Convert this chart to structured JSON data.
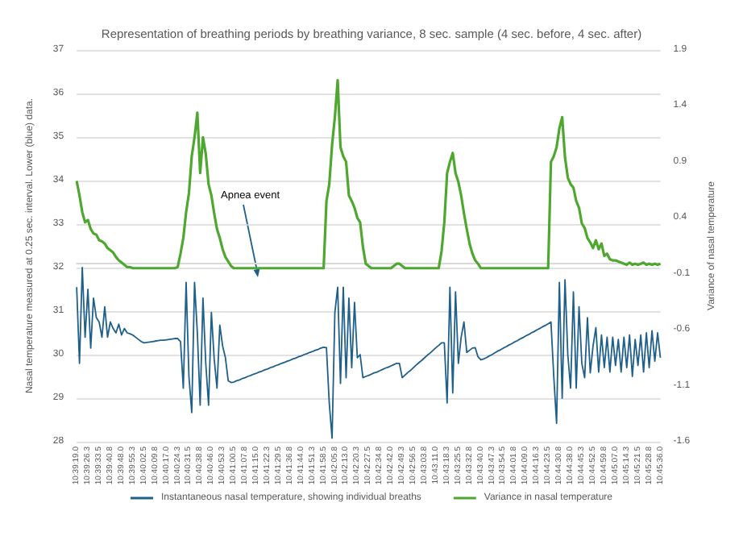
{
  "chart_data": {
    "type": "line",
    "title": "Representation of breathing periods by breathing variance, 8 sec. sample (4 sec. before, 4 sec. after)",
    "ylabel": "Nasal temperature measured at 0.25 sec. interval. Lower (blue) data.",
    "y2label": "Variance of nasal temperature",
    "annotations": [
      "Apnea event"
    ],
    "categories": [
      "10:39:19.0",
      null,
      null,
      null,
      "10:39:26.3",
      null,
      null,
      null,
      "10:39:33.5",
      null,
      null,
      null,
      "10:39:40.8",
      null,
      null,
      null,
      "10:39:48.0",
      null,
      null,
      null,
      "10:39:55.3",
      null,
      null,
      null,
      "10:40:02.5",
      null,
      null,
      null,
      "10:40:09.8",
      null,
      null,
      null,
      "10:40:17.0",
      null,
      null,
      null,
      "10:40:24.3",
      null,
      null,
      null,
      "10:40:31.5",
      null,
      null,
      null,
      "10:40:38.8",
      null,
      null,
      null,
      "10:40:46.0",
      null,
      null,
      null,
      "10:40:53.3",
      null,
      null,
      null,
      "10:41:00.5",
      null,
      null,
      null,
      "10:41:07.8",
      null,
      null,
      null,
      "10:41:15.0",
      null,
      null,
      null,
      "10:41:22.3",
      null,
      null,
      null,
      "10:41:29.5",
      null,
      null,
      null,
      "10:41:36.8",
      null,
      null,
      null,
      "10:41:44.0",
      null,
      null,
      null,
      "10:41:51.3",
      null,
      null,
      null,
      "10:41:58.5",
      null,
      null,
      null,
      "10:42:05.8",
      null,
      null,
      null,
      "10:42:13.0",
      null,
      null,
      null,
      "10:42:20.3",
      null,
      null,
      null,
      "10:42:27.5",
      null,
      null,
      null,
      "10:42:34.8",
      null,
      null,
      null,
      "10:42:42.0",
      null,
      null,
      null,
      "10:42:49.3",
      null,
      null,
      null,
      "10:42:56.5",
      null,
      null,
      null,
      "10:43:03.8",
      null,
      null,
      null,
      "10:43:11.0",
      null,
      null,
      null,
      "10:43:18.3",
      null,
      null,
      null,
      "10:43:25.5",
      null,
      null,
      null,
      "10:43:32.8",
      null,
      null,
      null,
      "10:43:40.0",
      null,
      null,
      null,
      "10:43:47.3",
      null,
      null,
      null,
      "10:43:54.5",
      null,
      null,
      null,
      "10:44:01.8",
      null,
      null,
      null,
      "10:44:09.0",
      null,
      null,
      null,
      "10:44:16.3",
      null,
      null,
      null,
      "10:44:23.5",
      null,
      null,
      null,
      "10:44:30.8",
      null,
      null,
      null,
      "10:44:38.0",
      null,
      null,
      null,
      "10:44:45.3",
      null,
      null,
      null,
      "10:44:52.5",
      null,
      null,
      null,
      "10:44:59.8",
      null,
      null,
      null,
      "10:45:07.0",
      null,
      null,
      null,
      "10:45:14.3",
      null,
      null,
      null,
      "10:45:21.5",
      null,
      null,
      null,
      "10:45:28.8",
      null,
      null,
      null,
      "10:45:36.0"
    ],
    "series": [
      {
        "name": "Instantaneous nasal temperature, showing individual breaths",
        "color": "#1f5f8b",
        "values": [
          31.55,
          29.8,
          32.0,
          30.4,
          31.5,
          30.15,
          31.3,
          30.85,
          30.75,
          30.4,
          31.1,
          30.4,
          30.75,
          30.6,
          30.5,
          30.7,
          30.45,
          30.6,
          30.5,
          30.48,
          30.45,
          30.4,
          30.35,
          30.3,
          30.27,
          30.28,
          30.29,
          30.3,
          30.31,
          30.32,
          30.33,
          30.33,
          30.34,
          30.35,
          30.36,
          30.37,
          30.37,
          30.3,
          29.23,
          31.66,
          29.5,
          28.67,
          31.66,
          30.5,
          28.84,
          31.3,
          29.8,
          28.84,
          30.97,
          29.9,
          29.23,
          30.68,
          30.2,
          29.93,
          29.4,
          29.36,
          29.37,
          29.4,
          29.42,
          29.45,
          29.47,
          29.5,
          29.52,
          29.55,
          29.57,
          29.6,
          29.62,
          29.65,
          29.67,
          29.7,
          29.72,
          29.75,
          29.77,
          29.8,
          29.82,
          29.85,
          29.87,
          29.9,
          29.92,
          29.95,
          29.97,
          30.0,
          30.02,
          30.05,
          30.07,
          30.1,
          30.12,
          30.15,
          30.17,
          30.16,
          28.89,
          28.08,
          30.97,
          31.55,
          29.34,
          31.55,
          29.47,
          31.3,
          29.7,
          31.2,
          29.93,
          30.0,
          29.47,
          29.5,
          29.52,
          29.55,
          29.58,
          29.6,
          29.63,
          29.66,
          29.69,
          29.71,
          29.74,
          29.77,
          29.8,
          29.8,
          29.47,
          29.53,
          29.59,
          29.64,
          29.7,
          29.76,
          29.82,
          29.87,
          29.93,
          29.99,
          30.04,
          30.1,
          30.16,
          30.21,
          30.27,
          30.27,
          28.89,
          31.55,
          29.12,
          31.44,
          29.8,
          30.4,
          30.75,
          30.05,
          30.1,
          30.15,
          30.16,
          29.95,
          29.88,
          29.9,
          29.93,
          29.97,
          30.0,
          30.04,
          30.08,
          30.11,
          30.15,
          30.18,
          30.22,
          30.25,
          30.29,
          30.32,
          30.36,
          30.39,
          30.43,
          30.46,
          30.5,
          30.53,
          30.57,
          30.6,
          30.64,
          30.67,
          30.71,
          30.75,
          29.5,
          28.42,
          31.66,
          29.0,
          31.72,
          30.0,
          29.23,
          31.44,
          29.23,
          31.1,
          29.8,
          29.47,
          30.85,
          29.58,
          30.2,
          30.62,
          29.6,
          30.45,
          29.7,
          30.4,
          29.6,
          30.4,
          29.75,
          30.35,
          29.6,
          30.4,
          29.7,
          30.45,
          29.5,
          30.35,
          29.75,
          30.45,
          29.6,
          30.5,
          29.7,
          30.55,
          29.85,
          30.5,
          29.93
        ]
      },
      {
        "name": "Variance in nasal temperature",
        "color": "#4ea72e",
        "axis": "y2",
        "values": [
          0.73,
          0.6,
          0.45,
          0.36,
          0.38,
          0.3,
          0.26,
          0.25,
          0.2,
          0.19,
          0.17,
          0.13,
          0.11,
          0.09,
          0.05,
          0.02,
          0,
          -0.02,
          -0.04,
          -0.04,
          -0.05,
          -0.05,
          -0.05,
          -0.05,
          -0.05,
          -0.05,
          -0.05,
          -0.05,
          -0.05,
          -0.05,
          -0.05,
          -0.05,
          -0.05,
          -0.05,
          -0.05,
          -0.05,
          -0.04,
          0.08,
          0.22,
          0.45,
          0.62,
          0.95,
          1.12,
          1.34,
          0.8,
          1.12,
          0.97,
          0.7,
          0.6,
          0.44,
          0.3,
          0.22,
          0.12,
          0.05,
          0.01,
          -0.03,
          -0.05,
          -0.05,
          -0.05,
          -0.05,
          -0.05,
          -0.05,
          -0.05,
          -0.05,
          -0.05,
          -0.05,
          -0.05,
          -0.05,
          -0.05,
          -0.05,
          -0.05,
          -0.05,
          -0.05,
          -0.05,
          -0.05,
          -0.05,
          -0.05,
          -0.05,
          -0.05,
          -0.05,
          -0.05,
          -0.05,
          -0.05,
          -0.05,
          -0.05,
          -0.05,
          -0.05,
          -0.05,
          -0.05,
          0.55,
          0.7,
          1.05,
          1.3,
          1.63,
          1.03,
          0.95,
          0.9,
          0.6,
          0.55,
          0.49,
          0.4,
          0.36,
          0.14,
          -0.01,
          -0.03,
          -0.05,
          -0.05,
          -0.05,
          -0.05,
          -0.05,
          -0.05,
          -0.05,
          -0.05,
          -0.03,
          -0.01,
          -0.01,
          -0.03,
          -0.05,
          -0.05,
          -0.05,
          -0.05,
          -0.05,
          -0.05,
          -0.05,
          -0.05,
          -0.05,
          -0.05,
          -0.05,
          -0.05,
          -0.05,
          0.1,
          0.36,
          0.8,
          0.9,
          0.98,
          0.8,
          0.72,
          0.6,
          0.44,
          0.3,
          0.17,
          0.08,
          0.02,
          -0.01,
          -0.05,
          -0.05,
          -0.05,
          -0.05,
          -0.05,
          -0.05,
          -0.05,
          -0.05,
          -0.05,
          -0.05,
          -0.05,
          -0.05,
          -0.05,
          -0.05,
          -0.05,
          -0.05,
          -0.05,
          -0.05,
          -0.05,
          -0.05,
          -0.05,
          -0.05,
          -0.05,
          -0.05,
          -0.05,
          0.9,
          0.95,
          1.03,
          1.2,
          1.3,
          0.94,
          0.76,
          0.7,
          0.67,
          0.55,
          0.49,
          0.35,
          0.31,
          0.22,
          0.18,
          0.13,
          0.2,
          0.12,
          0.17,
          0.06,
          0.08,
          0.03,
          0.02,
          0.02,
          0.01,
          0,
          -0.01,
          -0.02,
          0,
          -0.02,
          -0.01,
          -0.02,
          -0.01,
          0,
          -0.02,
          -0.01,
          -0.02,
          -0.01,
          -0.02,
          -0.01
        ]
      }
    ],
    "ylim": [
      28,
      37
    ],
    "yticks": [
      28,
      29,
      30,
      31,
      32,
      33,
      34,
      35,
      36,
      37
    ],
    "y2lim": [
      -1.6,
      1.9
    ],
    "y2ticks": [
      -1.6,
      -1.1,
      -0.6,
      -0.1,
      0.4,
      0.9,
      1.4,
      1.9
    ],
    "grid": "y",
    "legend": "bottom",
    "line_style": "solid"
  }
}
